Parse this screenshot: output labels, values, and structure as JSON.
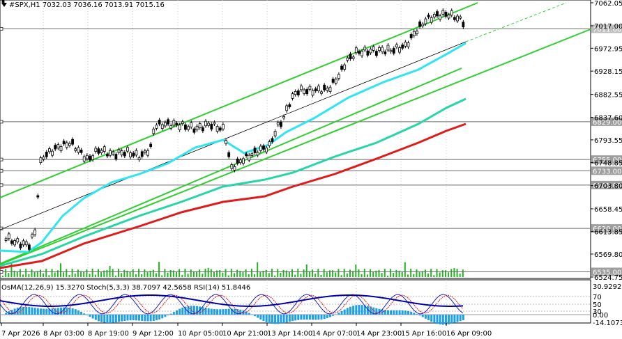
{
  "header": {
    "symbol": "#SPX,H1",
    "ohlc": "7032.03 7036.16 7013.91 7015.16",
    "indicators": "OsMA(12,26,9) 15.3270  Stoch(5,3,3) 38.7097 42.5658  RSI(14) 51.8446"
  },
  "colors": {
    "candle": "#000000",
    "ema_fast": "#2ee6f0",
    "ema_mid": "#27d6a6",
    "ema_slow": "#e01b1b",
    "channel": "#2fcf2f",
    "volume": "#23b623",
    "osma": "#1ea0e6",
    "stoch_main": "#1f1fbf",
    "stoch_signal": "#d02020",
    "rsi": "#0000aa"
  },
  "price_axis": [
    "7062.05",
    "7017.00",
    "6972.95",
    "6928.15",
    "6882.55",
    "6837.60",
    "6793.55",
    "6748.85",
    "6703.80",
    "6658.45",
    "6613.85",
    "6569.80",
    "6524.75"
  ],
  "price_markers": [
    {
      "text": "7011.00",
      "value": 7011.0,
      "highlight": true
    },
    {
      "text": "6829.00",
      "value": 6829.0,
      "highlight": false
    },
    {
      "text": "6755.00",
      "value": 6755.0,
      "highlight": false
    },
    {
      "text": "6733.00",
      "value": 6733.0,
      "highlight": false
    },
    {
      "text": "6705.00",
      "value": 6705.0,
      "highlight": false
    },
    {
      "text": "6620.00",
      "value": 6620.0,
      "highlight": false
    },
    {
      "text": "6535.00",
      "value": 6535.0,
      "highlight": false
    }
  ],
  "osc_axis": [
    "30.9292",
    "70",
    "50",
    "30",
    "0.00",
    "-14.1073"
  ],
  "time_axis": [
    "7 Apr 2026",
    "8 Apr 03:00",
    "8 Apr 19:00",
    "9 Apr 12:00",
    "10 Apr 05:00",
    "10 Apr 21:00",
    "13 Apr 14:00",
    "14 Apr 07:00",
    "14 Apr 23:00",
    "15 Apr 16:00",
    "16 Apr 09:00"
  ]
}
